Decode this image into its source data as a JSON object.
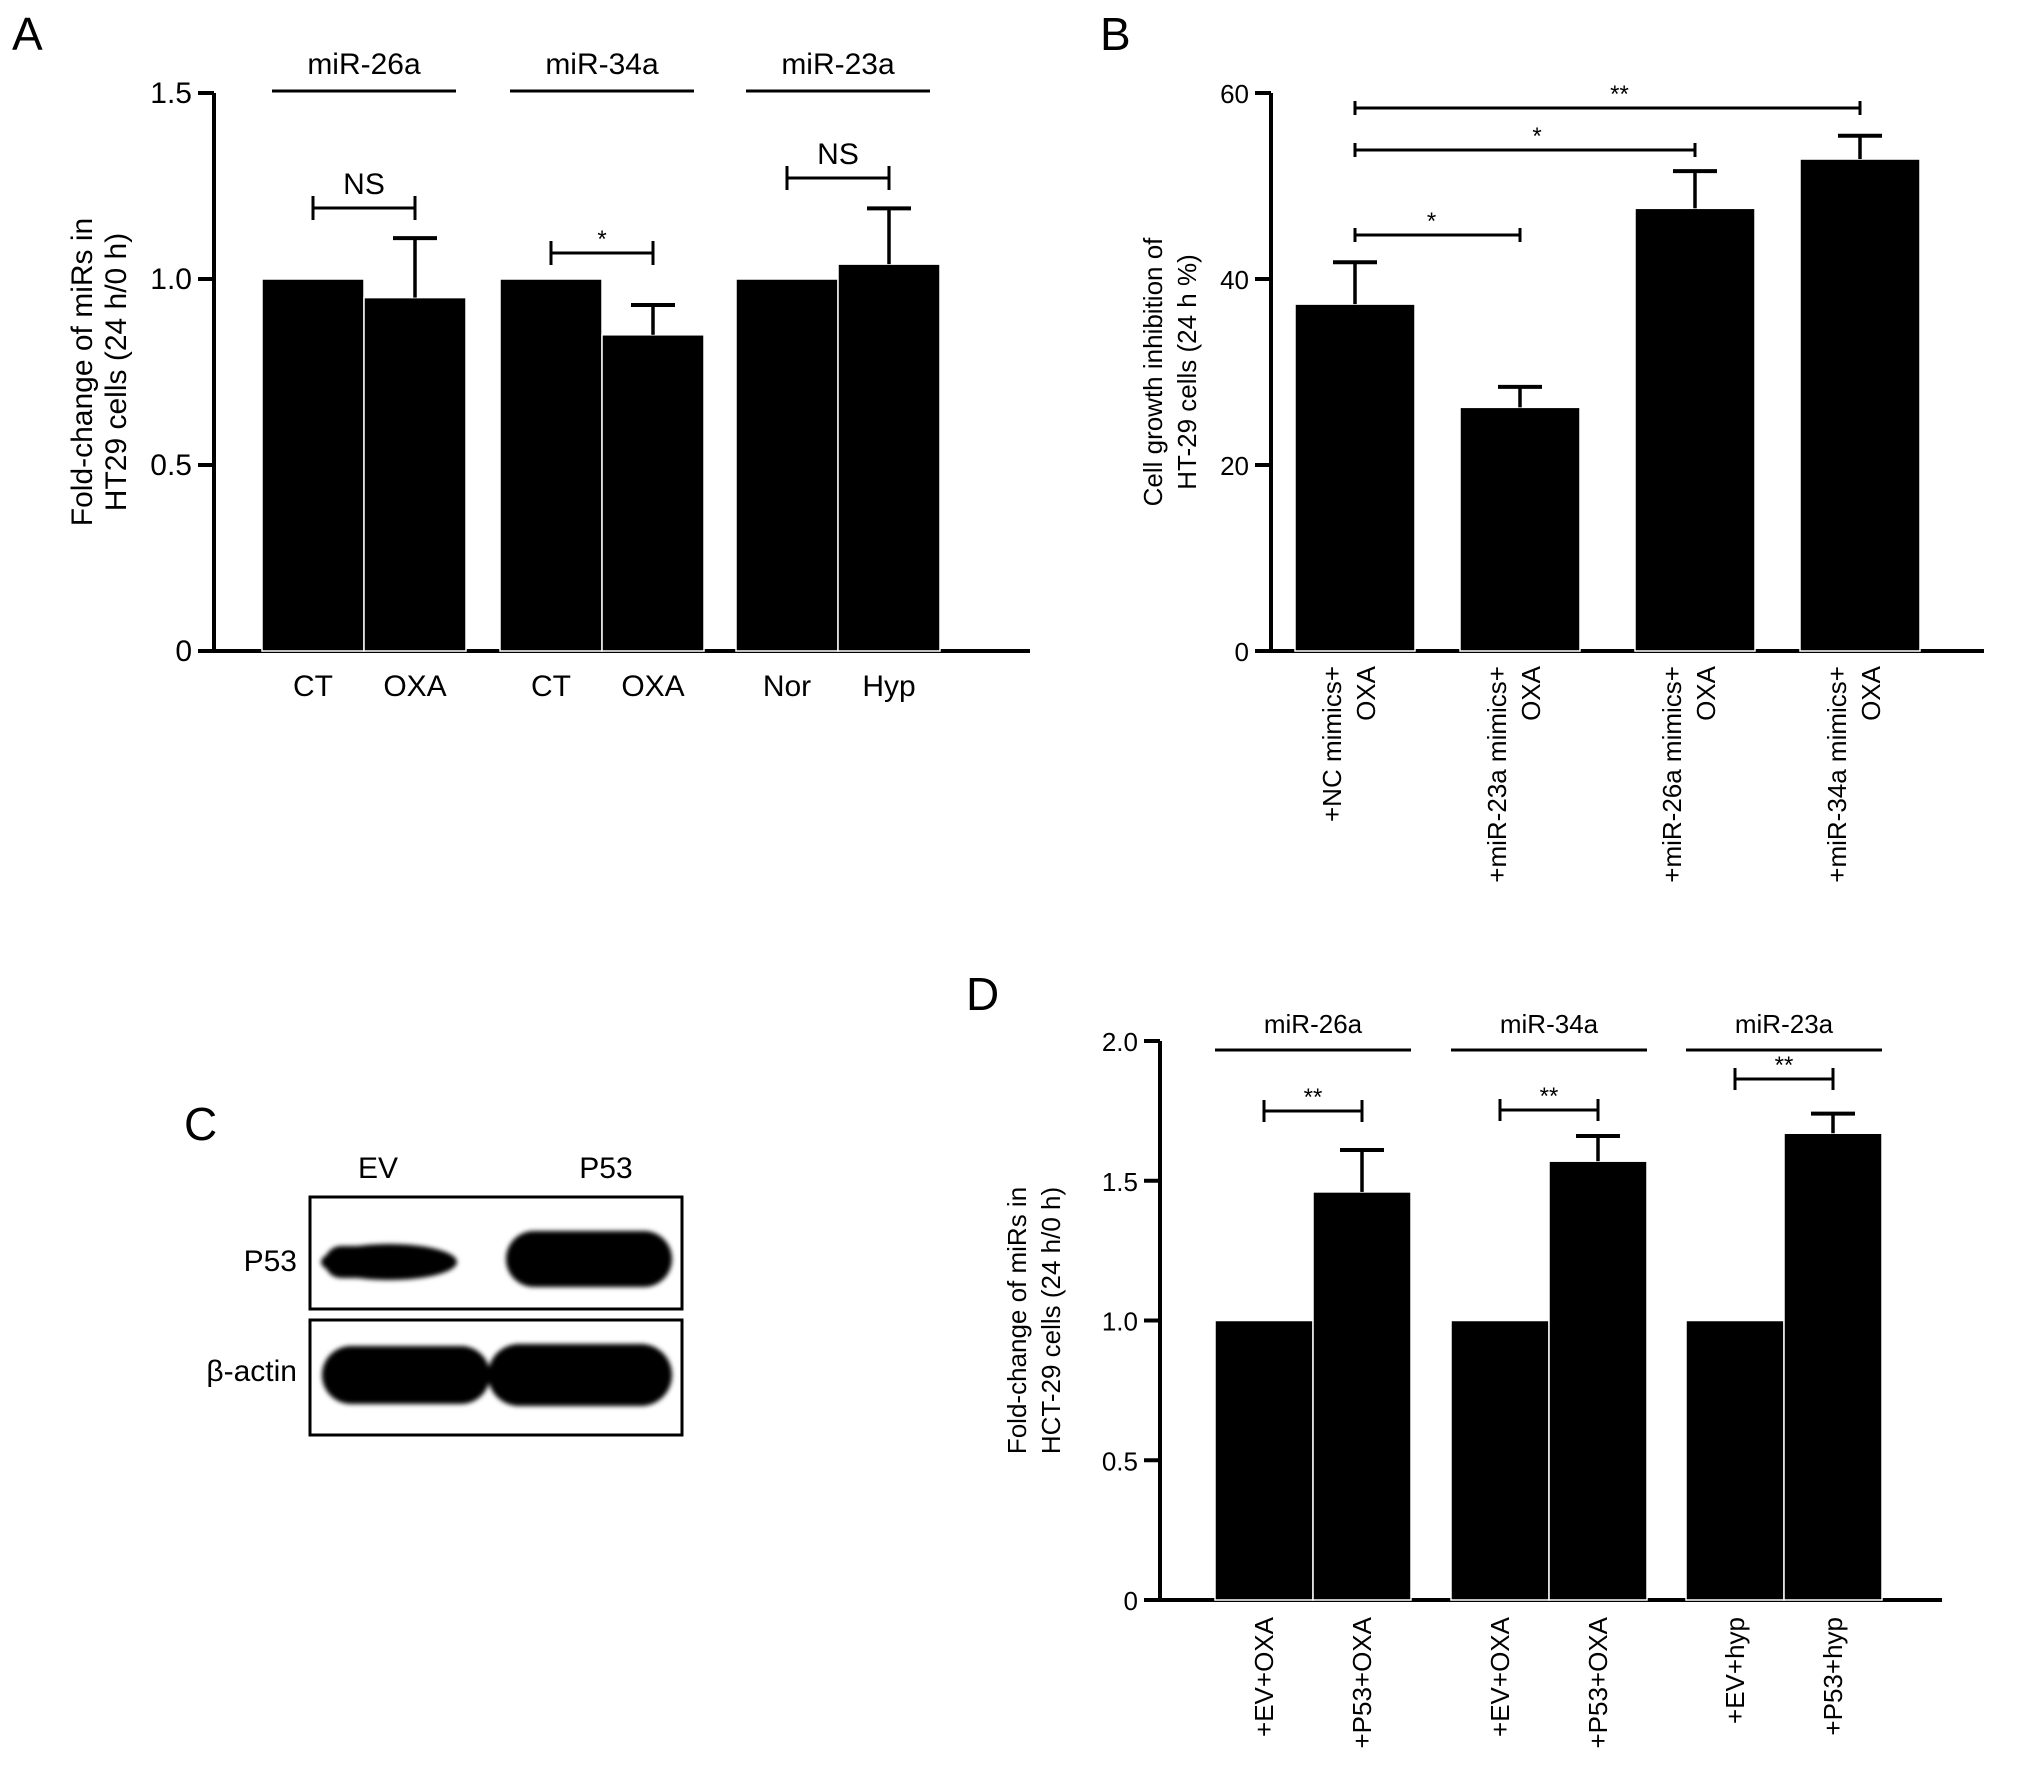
{
  "figure": {
    "panel_letters": [
      "A",
      "B",
      "C",
      "D"
    ]
  },
  "chart_data": [
    {
      "panel": "A",
      "type": "bar",
      "ylabel_lines": [
        "Fold-change of miRs in",
        "HT29 cells (24 h/0 h)"
      ],
      "ylim": [
        0,
        1.5
      ],
      "yticks": [
        "0",
        "0.5",
        "1.0",
        "1.5"
      ],
      "ytick_values": [
        0,
        0.5,
        1.0,
        1.5
      ],
      "categories": [
        "CT",
        "OXA",
        "CT",
        "OXA",
        "Nor",
        "Hyp"
      ],
      "values": [
        1.0,
        0.95,
        1.0,
        0.85,
        1.0,
        1.04
      ],
      "errors": [
        0,
        0.16,
        0,
        0.08,
        0,
        0.15
      ],
      "groups": [
        {
          "label": "miR-26a",
          "bars": [
            0,
            1
          ]
        },
        {
          "label": "miR-34a",
          "bars": [
            2,
            3
          ]
        },
        {
          "label": "miR-23a",
          "bars": [
            4,
            5
          ]
        }
      ],
      "significance": [
        {
          "from": 0,
          "to": 1,
          "label": "NS"
        },
        {
          "from": 2,
          "to": 3,
          "label": "*"
        },
        {
          "from": 4,
          "to": 5,
          "label": "NS"
        }
      ],
      "bar_color": "#000000"
    },
    {
      "panel": "B",
      "type": "bar",
      "ylabel_lines": [
        "Cell growth inhibition of",
        "HT-29 cells (24 h %)"
      ],
      "ylim": [
        0,
        60
      ],
      "yticks": [
        "0",
        "20",
        "40",
        "60"
      ],
      "ytick_values": [
        0,
        20,
        40,
        60
      ],
      "categories": [
        [
          "+NC mimics+",
          "OXA"
        ],
        [
          "+miR-23a mimics+",
          "OXA"
        ],
        [
          "+miR-26a mimics+",
          "OXA"
        ],
        [
          "+miR-34a mimics+",
          "OXA"
        ]
      ],
      "values": [
        37.3,
        26.2,
        47.6,
        52.9
      ],
      "errors": [
        4.5,
        2.2,
        4.0,
        2.5
      ],
      "significance": [
        {
          "from": 0,
          "to": 1,
          "label": "*"
        },
        {
          "from": 0,
          "to": 2,
          "label": "*"
        },
        {
          "from": 0,
          "to": 3,
          "label": "**"
        }
      ],
      "bar_color": "#000000"
    },
    {
      "panel": "D",
      "type": "bar",
      "ylabel_lines": [
        "Fold-change of miRs in",
        "HCT-29 cells (24 h/0 h)"
      ],
      "ylim": [
        0,
        2.0
      ],
      "yticks": [
        "0",
        "0.5",
        "1.0",
        "1.5",
        "2.0"
      ],
      "ytick_values": [
        0,
        0.5,
        1.0,
        1.5,
        2.0
      ],
      "categories": [
        "+EV+OXA",
        "+P53+OXA",
        "+EV+OXA",
        "+P53+OXA",
        "+EV+hyp",
        "+P53+hyp"
      ],
      "values": [
        1.0,
        1.46,
        1.0,
        1.57,
        1.0,
        1.67
      ],
      "errors": [
        0,
        0.15,
        0,
        0.09,
        0,
        0.07
      ],
      "groups": [
        {
          "label": "miR-26a",
          "bars": [
            0,
            1
          ]
        },
        {
          "label": "miR-34a",
          "bars": [
            2,
            3
          ]
        },
        {
          "label": "miR-23a",
          "bars": [
            4,
            5
          ]
        }
      ],
      "significance": [
        {
          "from": 0,
          "to": 1,
          "label": "**"
        },
        {
          "from": 2,
          "to": 3,
          "label": "**"
        },
        {
          "from": 4,
          "to": 5,
          "label": "**"
        }
      ],
      "bar_color": "#000000"
    }
  ],
  "western_blot": {
    "panel": "C",
    "lanes": [
      "EV",
      "P53"
    ],
    "rows": [
      "P53",
      "β-actin"
    ]
  }
}
